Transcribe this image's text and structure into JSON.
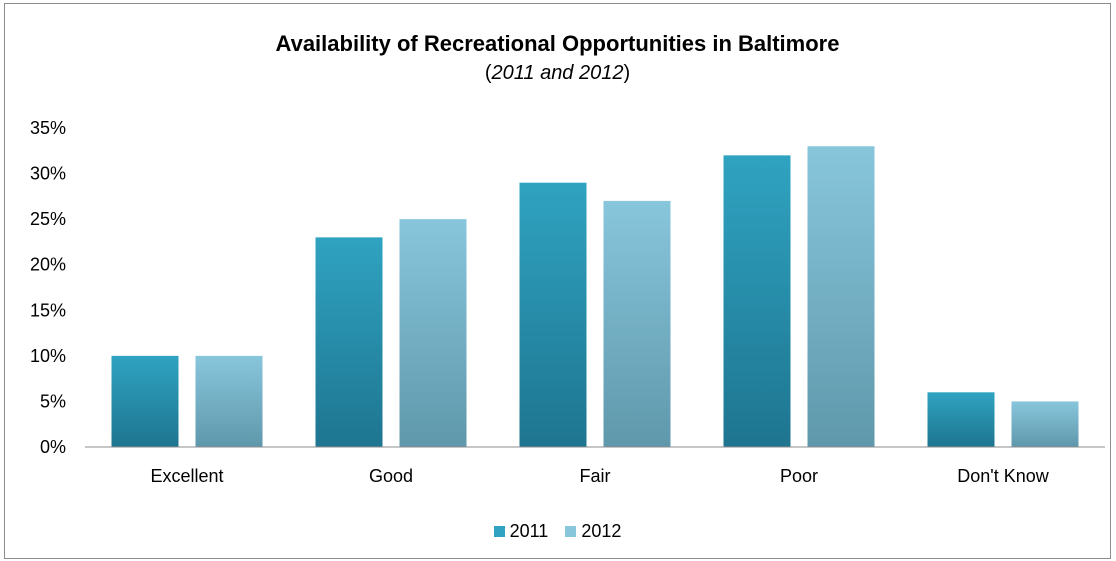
{
  "chart_data": {
    "type": "bar",
    "title": "Availability of Recreational Opportunities in Baltimore",
    "subtitle_paren_open": "(",
    "subtitle_italic": "2011 and 2012",
    "subtitle_paren_close": ")",
    "categories": [
      "Excellent",
      "Good",
      "Fair",
      "Poor",
      "Don't Know"
    ],
    "series": [
      {
        "name": "2011",
        "values": [
          10,
          23,
          29,
          32,
          6
        ],
        "color_top": "#2fa3c1",
        "color_bottom": "#1e7590"
      },
      {
        "name": "2012",
        "values": [
          10,
          25,
          27,
          33,
          5
        ],
        "color_top": "#88c6dc",
        "color_bottom": "#5f98ab"
      }
    ],
    "ylim": [
      0,
      35
    ],
    "yticks": [
      0,
      5,
      10,
      15,
      20,
      25,
      30,
      35
    ],
    "ytick_labels": [
      "0%",
      "5%",
      "10%",
      "15%",
      "20%",
      "25%",
      "30%",
      "35%"
    ],
    "xlabel": "",
    "ylabel": "",
    "grid": false,
    "legend_position": "bottom"
  }
}
